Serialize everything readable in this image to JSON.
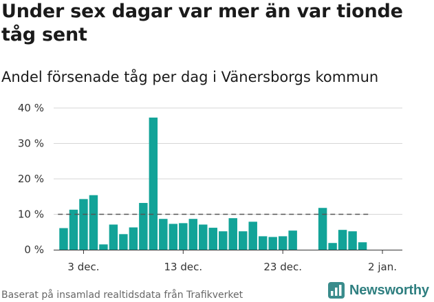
{
  "header": {
    "title": "Under sex dagar var mer än var tionde tåg sent",
    "subtitle": "Andel försenade tåg per dag i Vänersborgs kommun"
  },
  "footer": {
    "source": "Baserat på insamlad realtidsdata från Trafikverket",
    "brand": "Newsworthy"
  },
  "colors": {
    "bar": "#12a398",
    "reference_line": "#555555",
    "grid": "#d6d6d6",
    "axis": "#333333",
    "brand": "#2f7f80"
  },
  "icons": {
    "brand_logo": "newsworthy-logo-icon"
  },
  "chart_data": {
    "type": "bar",
    "title": "Under sex dagar var mer än var tionde tåg sent",
    "subtitle": "Andel försenade tåg per dag i Vänersborgs kommun",
    "xlabel": "",
    "ylabel": "",
    "unit": "%",
    "ylim": [
      0,
      40
    ],
    "yticks": [
      0,
      10,
      20,
      30,
      40
    ],
    "ytick_labels": [
      "0 %",
      "10 %",
      "20 %",
      "30 %",
      "40 %"
    ],
    "x_start_index": 1,
    "x_range": [
      0,
      35
    ],
    "xticks": [
      3,
      13,
      23,
      33
    ],
    "xtick_labels": [
      "3 dec.",
      "13 dec.",
      "23 dec.",
      "2 jan."
    ],
    "grid": true,
    "reference_line": {
      "y": 10,
      "style": "dashed"
    },
    "x": [
      "1 dec.",
      "2 dec.",
      "3 dec.",
      "4 dec.",
      "5 dec.",
      "6 dec.",
      "7 dec.",
      "8 dec.",
      "9 dec.",
      "10 dec.",
      "11 dec.",
      "12 dec.",
      "13 dec.",
      "14 dec.",
      "15 dec.",
      "16 dec.",
      "17 dec.",
      "18 dec.",
      "19 dec.",
      "20 dec.",
      "21 dec.",
      "22 dec.",
      "23 dec.",
      "24 dec.",
      "25 dec.",
      "26 dec.",
      "27 dec.",
      "28 dec.",
      "29 dec.",
      "30 dec.",
      "31 dec.",
      "1 jan."
    ],
    "values": [
      6.1,
      11.3,
      14.3,
      15.4,
      1.5,
      7.1,
      4.4,
      6.3,
      13.2,
      37.3,
      8.7,
      7.3,
      7.5,
      8.7,
      7.1,
      6.2,
      5.2,
      8.9,
      5.2,
      7.9,
      3.8,
      3.6,
      3.8,
      5.4,
      null,
      null,
      11.8,
      1.9,
      5.6,
      5.2,
      2.1,
      null
    ]
  }
}
